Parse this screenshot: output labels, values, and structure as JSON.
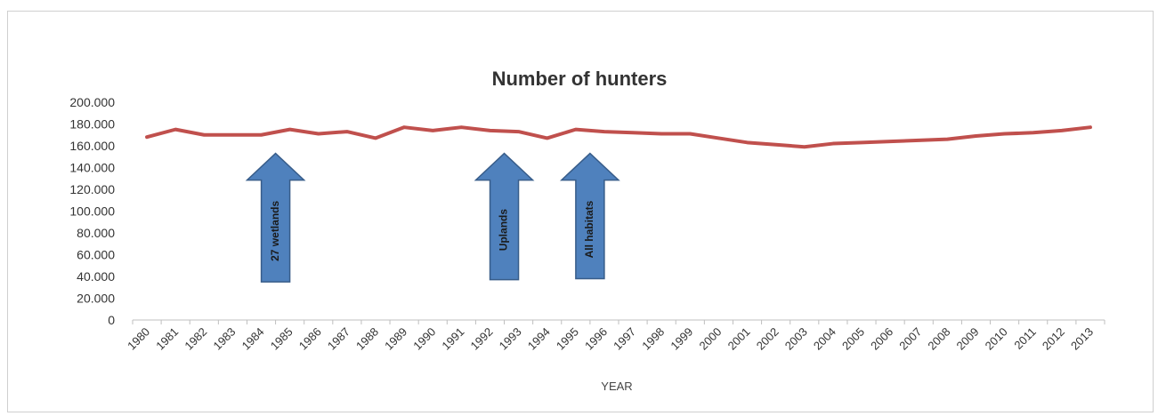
{
  "chart_data": {
    "type": "line",
    "title": "Number of hunters",
    "xlabel": "YEAR",
    "ylabel": "",
    "ylim": [
      0,
      200000
    ],
    "y_ticks": [
      "0",
      "20.000",
      "40.000",
      "60.000",
      "80.000",
      "100.000",
      "120.000",
      "140.000",
      "160.000",
      "180.000",
      "200.000"
    ],
    "grid": false,
    "legend": "none",
    "categories": [
      "1980",
      "1981",
      "1982",
      "1983",
      "1984",
      "1985",
      "1986",
      "1987",
      "1988",
      "1989",
      "1990",
      "1991",
      "1992",
      "1993",
      "1994",
      "1995",
      "1996",
      "1997",
      "1998",
      "1999",
      "2000",
      "2001",
      "2002",
      "2003",
      "2004",
      "2005",
      "2006",
      "2007",
      "2008",
      "2009",
      "2010",
      "2011",
      "2012",
      "2013"
    ],
    "series": [
      {
        "values": [
          168000,
          175000,
          170000,
          170000,
          170000,
          175000,
          171000,
          173000,
          167000,
          177000,
          174000,
          177000,
          174000,
          173000,
          167000,
          175000,
          173000,
          172000,
          171000,
          171000,
          167000,
          163000,
          161000,
          159000,
          162000,
          163000,
          164000,
          165000,
          166000,
          169000,
          171000,
          172000,
          174000,
          177000
        ],
        "color": "#c0504d"
      }
    ],
    "annotations": [
      {
        "label": "27 wetlands",
        "year": "1985",
        "tip_value": 153000,
        "base_value": 35000
      },
      {
        "label": "Uplands",
        "year": "1993",
        "tip_value": 153000,
        "base_value": 37000
      },
      {
        "label": "All habitats",
        "year": "1996",
        "tip_value": 153000,
        "base_value": 38000
      }
    ],
    "arrow_color": "#4f81bd",
    "arrow_border": "#385d8a"
  }
}
